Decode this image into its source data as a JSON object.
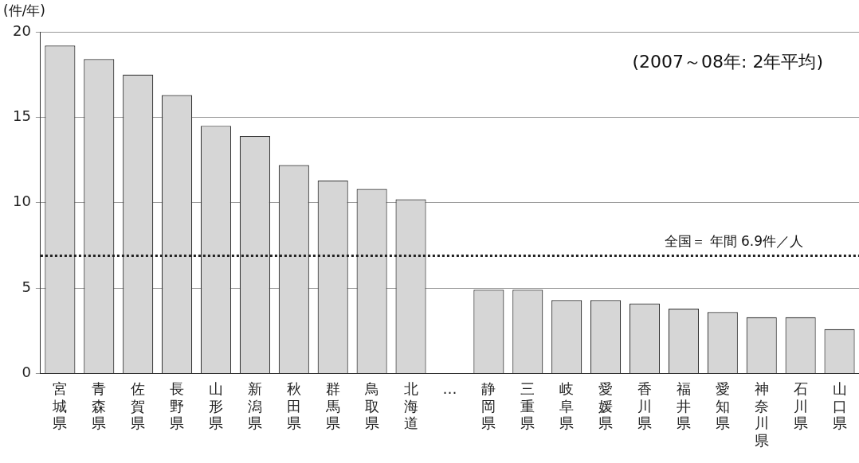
{
  "chart_data": {
    "type": "bar",
    "ylabel": "(件/年)",
    "annotations": [
      "(2007～08年: 2年平均)"
    ],
    "categories": [
      "宮城県",
      "青森県",
      "佐賀県",
      "長野県",
      "山形県",
      "新潟県",
      "秋田県",
      "群馬県",
      "鳥取県",
      "北海道",
      "…",
      "静岡県",
      "三重県",
      "岐阜県",
      "愛媛県",
      "香川県",
      "福井県",
      "愛知県",
      "神奈川県",
      "石川県",
      "山口県"
    ],
    "values": [
      19.2,
      18.4,
      17.5,
      16.3,
      14.5,
      13.9,
      12.2,
      11.3,
      10.8,
      10.2,
      null,
      4.9,
      4.9,
      4.3,
      4.3,
      4.1,
      3.8,
      3.6,
      3.3,
      3.3,
      2.6
    ],
    "color": "#d6d6d6",
    "ylim": [
      0,
      20
    ],
    "yticks": [
      0,
      5,
      10,
      15,
      20
    ],
    "grid": "y",
    "legend": false,
    "ref_lines": [
      {
        "axis": "y",
        "value": 6.9,
        "label": "全国＝ 年間 6.9件／人",
        "line_style": "dotted",
        "color": "#222222"
      }
    ]
  }
}
